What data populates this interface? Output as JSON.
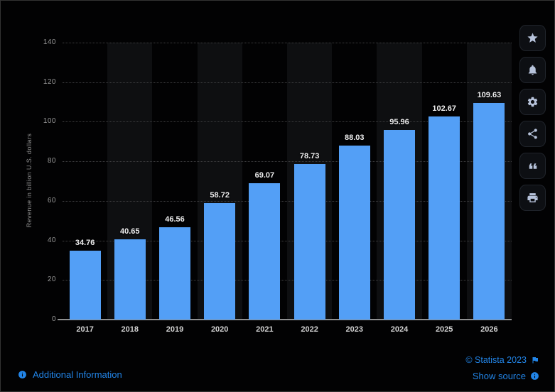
{
  "chart_data": {
    "type": "bar",
    "categories": [
      "2017",
      "2018",
      "2019",
      "2020",
      "2021",
      "2022",
      "2023",
      "2024",
      "2025",
      "2026"
    ],
    "values": [
      34.76,
      40.65,
      46.56,
      58.72,
      69.07,
      78.73,
      88.03,
      95.96,
      102.67,
      109.63
    ],
    "title": "",
    "xlabel": "",
    "ylabel": "Revenue in billion U.S. dollars",
    "ylim": [
      0,
      140
    ],
    "yticks": [
      0,
      20,
      40,
      60,
      80,
      100,
      120,
      140
    ],
    "grid": "horizontal-dotted",
    "legend": "none",
    "bar_color": "#539ff6",
    "background": "#020203"
  },
  "toolbar": {
    "icons": [
      "star-icon",
      "bell-icon",
      "gear-icon",
      "share-icon",
      "quote-icon",
      "printer-icon"
    ]
  },
  "footer": {
    "additional_info_label": "Additional Information",
    "copyright_label": "© Statista 2023",
    "show_source_label": "Show source"
  },
  "colors": {
    "bar": "#539ff6",
    "link_blue": "#2285e8",
    "value_label": "#ededee",
    "axis_label": "#999999"
  }
}
